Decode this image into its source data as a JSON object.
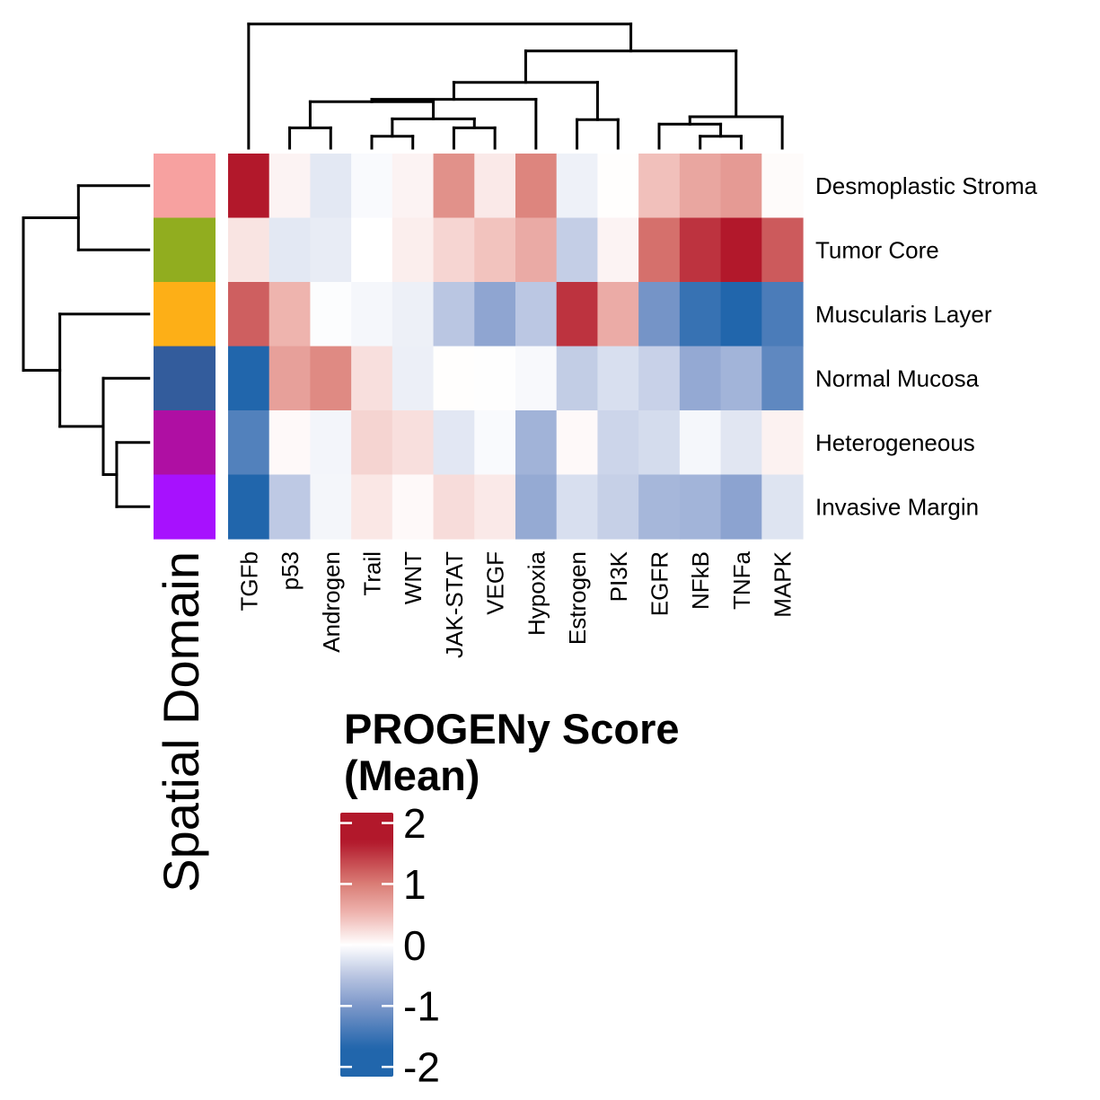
{
  "chart_data": {
    "type": "heatmap",
    "title": "",
    "xlabel": "",
    "ylabel": "",
    "rows": [
      "Desmoplastic Stroma",
      "Tumor Core",
      "Muscularis Layer",
      "Normal Mucosa",
      "Heterogeneous",
      "Invasive Margin"
    ],
    "columns": [
      "TGFb",
      "p53",
      "Androgen",
      "Trail",
      "WNT",
      "JAK-STAT",
      "VEGF",
      "Hypoxia",
      "Estrogen",
      "PI3K",
      "EGFR",
      "NFkB",
      "TNFa",
      "MAPK"
    ],
    "values": [
      [
        1.85,
        0.08,
        -0.2,
        -0.04,
        0.08,
        0.83,
        0.15,
        0.93,
        -0.12,
        0.01,
        0.44,
        0.65,
        0.75,
        0.03
      ],
      [
        0.19,
        -0.2,
        -0.17,
        0.0,
        0.12,
        0.29,
        0.42,
        0.61,
        -0.43,
        0.08,
        1.09,
        1.51,
        1.85,
        1.24
      ],
      [
        1.21,
        0.53,
        -0.02,
        -0.07,
        -0.13,
        -0.5,
        -0.85,
        -0.49,
        1.51,
        0.6,
        -1.05,
        -1.53,
        -1.85,
        -1.38
      ],
      [
        -1.8,
        0.7,
        0.89,
        0.22,
        -0.14,
        0.01,
        -0.01,
        -0.05,
        -0.44,
        -0.28,
        -0.4,
        -0.81,
        -0.69,
        -1.22
      ],
      [
        -1.32,
        0.04,
        -0.09,
        0.3,
        0.22,
        -0.21,
        -0.04,
        -0.7,
        0.04,
        -0.37,
        -0.31,
        -0.07,
        -0.22,
        0.09
      ],
      [
        -1.75,
        -0.47,
        -0.08,
        0.17,
        0.04,
        0.24,
        0.15,
        -0.8,
        -0.28,
        -0.41,
        -0.66,
        -0.69,
        -0.87,
        -0.24
      ]
    ],
    "row_annotation": {
      "title": "Spatial Domain",
      "colors": [
        "#F7A1A0",
        "#91AD1F",
        "#FDAF17",
        "#335C9C",
        "#AF0FA3",
        "#A711FE"
      ]
    },
    "colormap": [
      {
        "v": -1.7,
        "c": "#2166AC"
      },
      {
        "v": -1.0,
        "c": "#7C97C9"
      },
      {
        "v": -0.5,
        "c": "#BAC6E2"
      },
      {
        "v": 0.0,
        "c": "#FFFFFF"
      },
      {
        "v": 0.5,
        "c": "#EFB7B2"
      },
      {
        "v": 1.0,
        "c": "#DA7D76"
      },
      {
        "v": 1.7,
        "c": "#B2182B"
      }
    ],
    "legend": {
      "title_lines": [
        "PROGENy Score",
        "(Mean)"
      ],
      "ticks": [
        2,
        1,
        0,
        -1,
        -2
      ],
      "tick_labels": [
        "2",
        "1",
        "0",
        "-1",
        "-2"
      ],
      "range": [
        -2.16,
        2.17
      ],
      "placement": "bottom-center"
    },
    "row_label_side": "right",
    "column_label_side": "bottom",
    "row_dendrogram": {
      "h": 1.0,
      "children": [
        {
          "h": 0.561,
          "children": [
            0,
            1
          ]
        },
        {
          "h": 0.709,
          "children": [
            2,
            {
              "h": 0.363,
              "children": [
                3,
                {
                  "h": 0.256,
                  "children": [
                    4,
                    5
                  ]
                }
              ]
            }
          ]
        }
      ]
    },
    "column_dendrogram": {
      "h": 1.0,
      "children": [
        0,
        {
          "h": 0.783,
          "children": [
            {
              "h": 0.53,
              "children": [
                {
                  "h": 0.393,
                  "children": [
                    {
                      "h": 0.374,
                      "children": [
                        {
                          "h": 0.164,
                          "children": [
                            1,
                            2
                          ]
                        },
                        {
                          "h": 0.236,
                          "children": [
                            {
                              "h": 0.096,
                              "children": [
                                3,
                                4
                              ]
                            },
                            {
                              "h": 0.164,
                              "children": [
                                5,
                                6
                              ]
                            }
                          ]
                        }
                      ]
                    },
                    7
                  ]
                },
                {
                  "h": 0.23,
                  "children": [
                    8,
                    9
                  ]
                }
              ]
            },
            {
              "h": 0.253,
              "children": [
                {
                  "h": 0.193,
                  "children": [
                    10,
                    {
                      "h": 0.096,
                      "children": [
                        11,
                        12
                      ]
                    }
                  ]
                },
                13
              ]
            }
          ]
        }
      ]
    }
  }
}
